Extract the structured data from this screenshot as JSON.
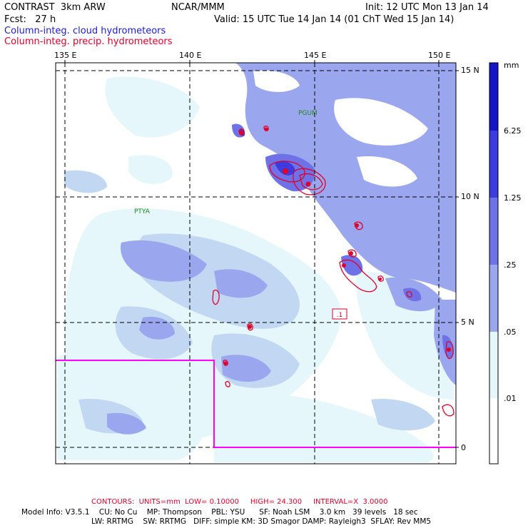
{
  "header": {
    "model": "CONTRAST  3km ARW",
    "org": "NCAR/MMM",
    "init": "Init: 12 UTC Mon 13 Jan 14",
    "fcst": "Fcst:   27 h",
    "valid": "Valid: 15 UTC Tue 14 Jan 14 (01 ChT Wed 15 Jan 14)",
    "field_cloud": "Column-integ. cloud hydrometeors",
    "field_precip": "Column-integ. precip. hydrometeors"
  },
  "colors": {
    "cloud_text": "#1c1cd6",
    "precip_text": "#e0002a",
    "level_1": "#e6f7fc",
    "level_2": "#c2d8f2",
    "level_3": "#9aa7ee",
    "level_4": "#6f72e6",
    "level_5": "#3b3be0",
    "level_6": "#1414c8",
    "domain_box": "#ff00ff"
  },
  "map": {
    "lon_labels": [
      "135 E",
      "140 E",
      "145 E",
      "150 E"
    ],
    "lat_labels": [
      "15 N",
      "10 N",
      "5 N",
      "0"
    ],
    "station_labels": [
      "PGUM",
      "PTYA"
    ],
    "contour_box_label": ".1"
  },
  "colorbar": {
    "unit": "mm",
    "levels": [
      "6.25",
      "1.25",
      ".25",
      ".05",
      ".01"
    ]
  },
  "footer": {
    "contours": "CONTOURS:  UNITS=mm  LOW= 0.10000     HIGH= 24.300     INTERVAL=X  3.0000",
    "model_info_1": "Model Info: V3.5.1    CU: No Cu    MP: Thompson    PBL: YSU      SF: Noah LSM    3.0 km   39 levels   18 sec",
    "model_info_2": "LW: RRTMG    SW: RRTMG   DIFF: simple KM: 3D Smagor DAMP: Rayleigh3  SFLAY: Rev MM5"
  }
}
